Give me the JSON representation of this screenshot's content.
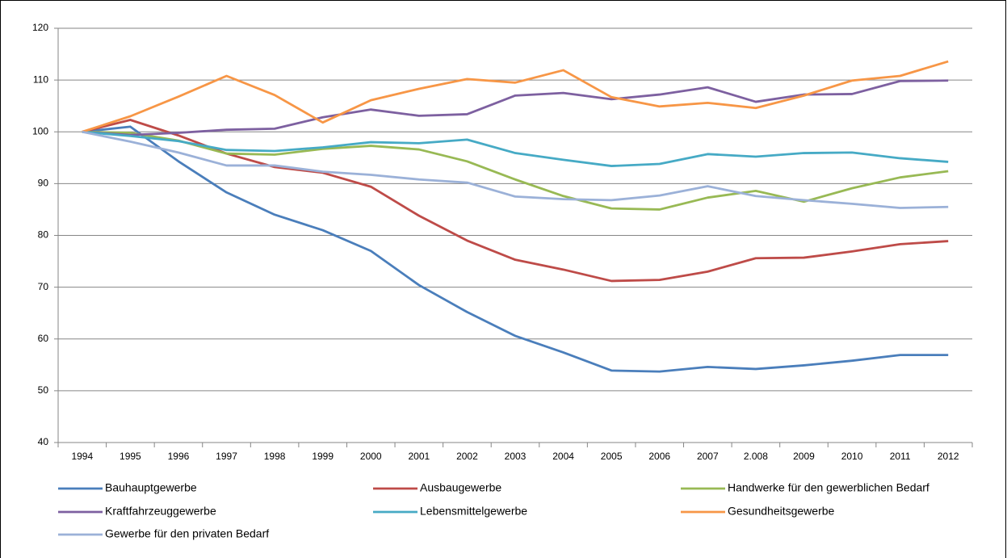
{
  "chart_data": {
    "type": "line",
    "categories": [
      "1994",
      "1995",
      "1996",
      "1997",
      "1998",
      "1999",
      "2000",
      "2001",
      "2002",
      "2003",
      "2004",
      "2005",
      "2006",
      "2007",
      "2.008",
      "2009",
      "2010",
      "2011",
      "2012"
    ],
    "ylim": [
      40,
      120
    ],
    "yticks": [
      40,
      50,
      60,
      70,
      80,
      90,
      100,
      110,
      120
    ],
    "grid": true,
    "legend": "bottom",
    "series": [
      {
        "name": "Bauhauptgewerbe",
        "color": "#4a7ebb",
        "values": [
          100,
          101,
          94.3,
          88.3,
          84,
          81,
          77,
          70.4,
          65.2,
          60.6,
          57.4,
          53.9,
          53.7,
          54.6,
          54.2,
          54.9,
          55.8,
          56.9,
          56.9
        ]
      },
      {
        "name": "Ausbaugewerbe",
        "color": "#be4b48",
        "values": [
          100,
          102.3,
          99.3,
          95.8,
          93.2,
          92.1,
          89.4,
          83.8,
          79,
          75.3,
          73.4,
          71.2,
          71.4,
          73,
          75.6,
          75.7,
          76.9,
          78.3,
          78.9
        ]
      },
      {
        "name": "Handwerke für den gewerblichen Bedarf",
        "color": "#98b954",
        "values": [
          100,
          99.8,
          98.3,
          95.8,
          95.6,
          96.7,
          97.3,
          96.6,
          94.3,
          90.8,
          87.6,
          85.2,
          85,
          87.3,
          88.6,
          86.5,
          89.1,
          91.2,
          92.4
        ]
      },
      {
        "name": "Kraftfahrzeuggewerbe",
        "color": "#7d60a0",
        "values": [
          100,
          99.4,
          99.8,
          100.4,
          100.6,
          102.8,
          104.3,
          103.1,
          103.4,
          107,
          107.5,
          106.3,
          107.2,
          108.6,
          105.8,
          107.2,
          107.3,
          109.8,
          109.9
        ]
      },
      {
        "name": "Lebensmittelgewerbe",
        "color": "#46aac5",
        "values": [
          100,
          99.2,
          98.2,
          96.5,
          96.3,
          97,
          98,
          97.8,
          98.5,
          95.9,
          94.6,
          93.4,
          93.8,
          95.7,
          95.2,
          95.9,
          96,
          94.9,
          94.2
        ]
      },
      {
        "name": "Gesundheitsgewerbe",
        "color": "#f79646",
        "values": [
          100,
          103,
          106.8,
          110.8,
          107.1,
          101.8,
          106.1,
          108.3,
          110.2,
          109.5,
          111.9,
          106.7,
          104.9,
          105.6,
          104.6,
          107,
          109.9,
          110.8,
          113.6
        ]
      },
      {
        "name": "Gewerbe für den privaten Bedarf",
        "color": "#9bb1d8",
        "values": [
          100,
          98.1,
          96,
          93.5,
          93.5,
          92.3,
          91.7,
          90.8,
          90.2,
          87.5,
          87,
          86.8,
          87.7,
          89.5,
          87.6,
          86.8,
          86.1,
          85.3,
          85.5
        ]
      }
    ]
  }
}
